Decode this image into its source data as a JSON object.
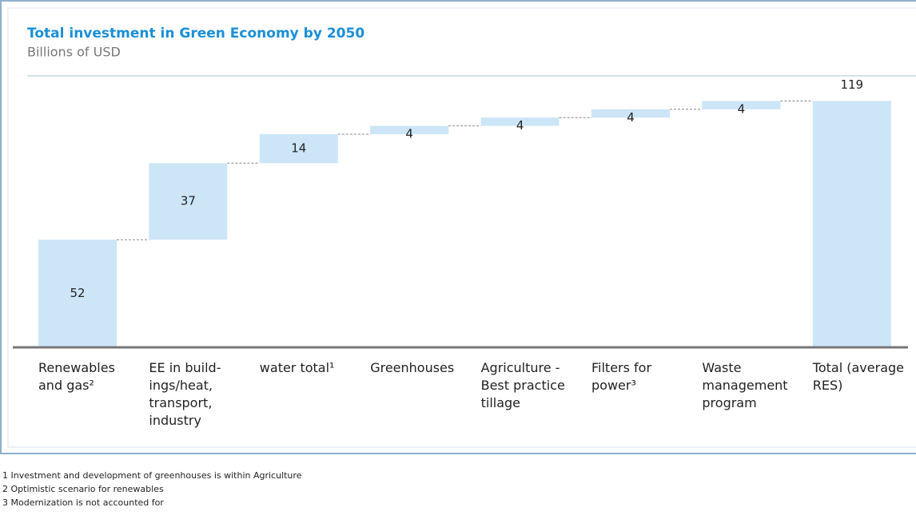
{
  "chart_data": {
    "type": "waterfall",
    "title": "Total investment in Green Economy by 2050",
    "subtitle": "Billions of USD",
    "categories": [
      "Renewables and gas²",
      "EE in build-ings/heat, transport, industry",
      "water total¹",
      "Greenhouses",
      "Agriculture - Best practice tillage",
      "Filters for power³",
      "Waste management program",
      "Total (average RES)"
    ],
    "values": [
      52,
      37,
      14,
      4,
      4,
      4,
      4,
      119
    ],
    "is_total": [
      false,
      false,
      false,
      false,
      false,
      false,
      false,
      true
    ],
    "color": "#cce6f8",
    "ylim": [
      0,
      130
    ],
    "footnotes": [
      "1 Investment and development of greenhouses is within Agriculture",
      "2 Optimistic scenario for renewables",
      "3 Modernization is not accounted for"
    ]
  }
}
